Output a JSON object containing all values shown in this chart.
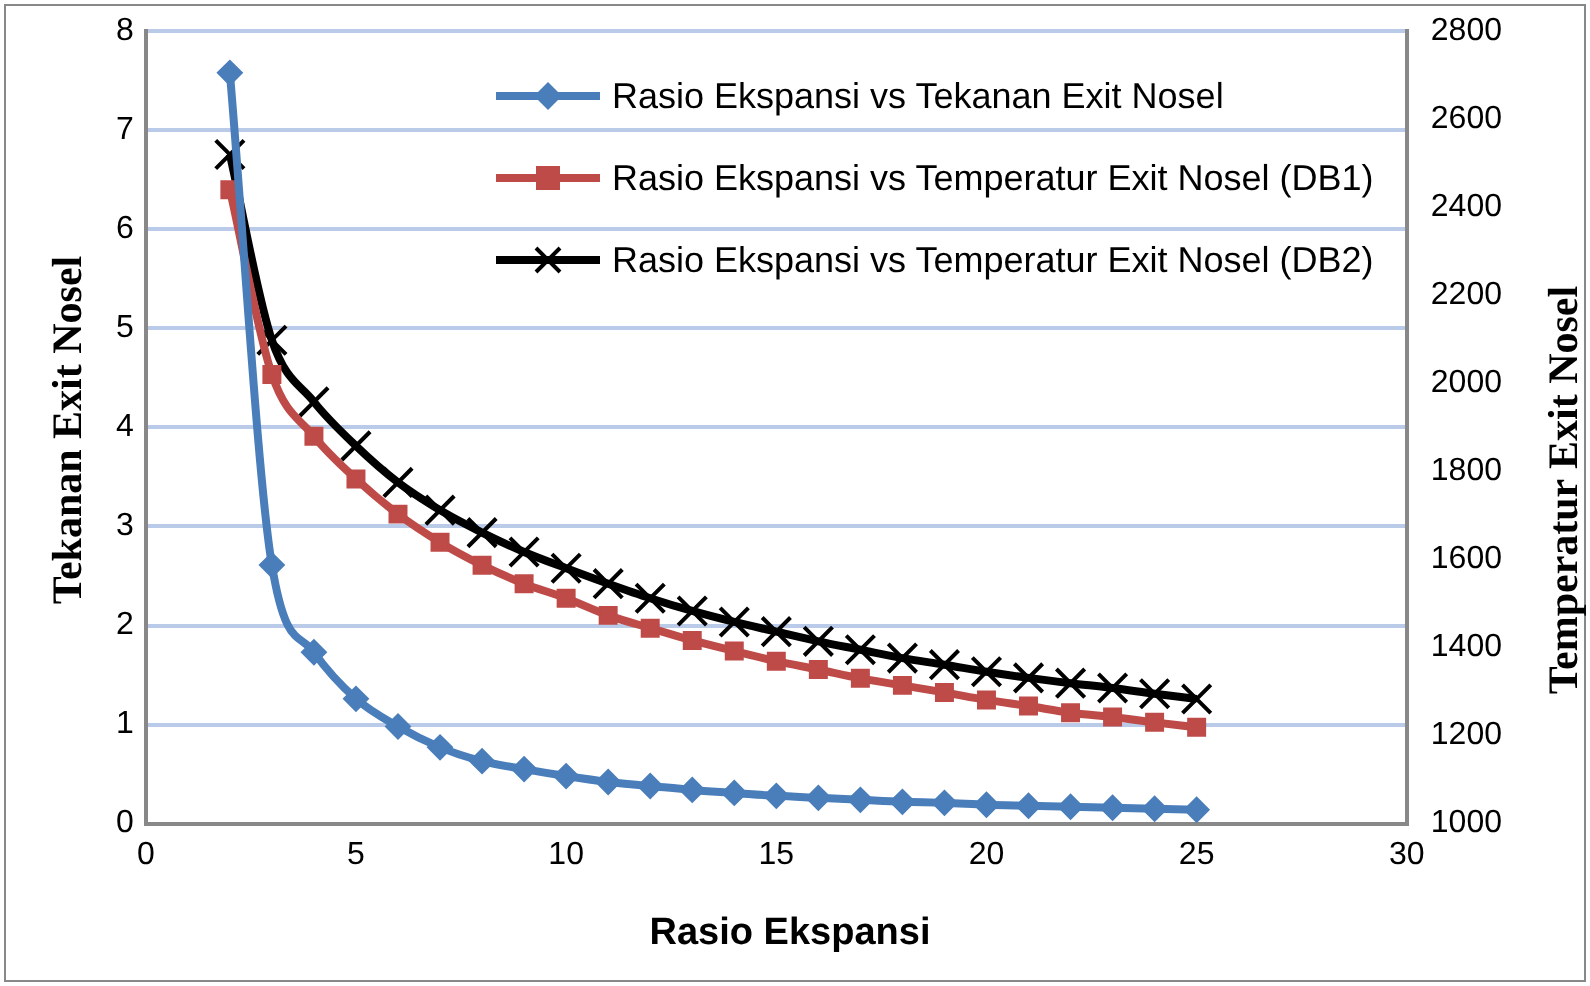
{
  "chart_data": {
    "type": "line",
    "xlabel": "Rasio Ekspansi",
    "ylabel": "Tekanan Exit Nosel",
    "y2label": "Temperatur Exit Nosel",
    "x": [
      2,
      3,
      4,
      5,
      6,
      7,
      8,
      9,
      10,
      11,
      12,
      13,
      14,
      15,
      16,
      17,
      18,
      19,
      20,
      21,
      22,
      23,
      24,
      25
    ],
    "series": [
      {
        "name": "Rasio Ekspansi vs Tekanan Exit Nosel",
        "color": "#4a7ebb",
        "marker": "diamond",
        "values": [
          7.58,
          2.61,
          1.73,
          1.26,
          0.98,
          0.77,
          0.63,
          0.55,
          0.48,
          0.42,
          0.38,
          0.34,
          0.31,
          0.28,
          0.26,
          0.24,
          0.22,
          0.21,
          0.19,
          0.18,
          0.17,
          0.16,
          0.15,
          0.14
        ]
      },
      {
        "name": "Rasio Ekspansi vs Temperatur Exit Nosel (DB1)",
        "color": "#be4b48",
        "marker": "square",
        "axis": "y2",
        "values": [
          2440,
          2020,
          1880,
          1783,
          1703,
          1639,
          1587,
          1545,
          1512,
          1473,
          1444,
          1416,
          1392,
          1369,
          1350,
          1330,
          1314,
          1298,
          1281,
          1267,
          1252,
          1242,
          1230,
          1219
        ]
      },
      {
        "name": "Rasio Ekspansi vs Temperatur Exit Nosel (DB2)",
        "color": "#000000",
        "marker": "cross",
        "axis": "y2",
        "values": [
          2520,
          2098,
          1958,
          1858,
          1775,
          1712,
          1661,
          1617,
          1580,
          1545,
          1512,
          1483,
          1458,
          1436,
          1414,
          1395,
          1376,
          1361,
          1345,
          1331,
          1319,
          1308,
          1295,
          1283
        ]
      }
    ],
    "xlim": [
      0,
      30
    ],
    "xticks": [
      0,
      5,
      10,
      15,
      20,
      25,
      30
    ],
    "ylim": [
      0,
      8
    ],
    "yticks": [
      0,
      1,
      2,
      3,
      4,
      5,
      6,
      7,
      8
    ],
    "y2lim": [
      1000,
      2800
    ],
    "y2ticks": [
      1000,
      1200,
      1400,
      1600,
      1800,
      2000,
      2200,
      2400,
      2600,
      2800
    ],
    "grid": "y",
    "legend": "top right",
    "line_style": "solid"
  }
}
